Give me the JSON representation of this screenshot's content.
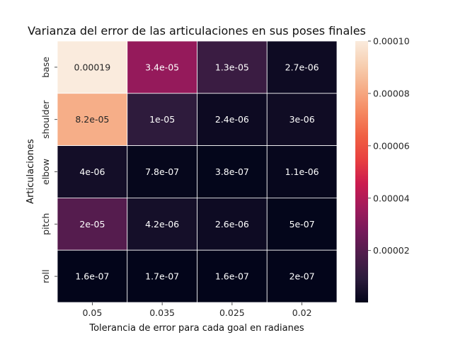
{
  "chart_data": {
    "type": "heatmap",
    "title": "Varianza del error de las articulaciones en sus poses finales",
    "xlabel": "Tolerancia de error para cada goal en radianes",
    "ylabel": "Articulaciones",
    "x_categories": [
      "0.05",
      "0.035",
      "0.025",
      "0.02"
    ],
    "y_categories": [
      "base",
      "shoulder",
      "elbow",
      "pitch",
      "roll"
    ],
    "values": [
      [
        0.00019,
        3.4e-05,
        1.3e-05,
        2.7e-06
      ],
      [
        8.2e-05,
        1e-05,
        2.4e-06,
        3e-06
      ],
      [
        4e-06,
        7.8e-07,
        3.8e-07,
        1.1e-06
      ],
      [
        2e-05,
        4.2e-06,
        2.6e-06,
        5e-07
      ],
      [
        1.6e-07,
        1.7e-07,
        1.6e-07,
        2e-07
      ]
    ],
    "annotations": [
      [
        "0.00019",
        "3.4e-05",
        "1.3e-05",
        "2.7e-06"
      ],
      [
        "8.2e-05",
        "1e-05",
        "2.4e-06",
        "3e-06"
      ],
      [
        "4e-06",
        "7.8e-07",
        "3.8e-07",
        "1.1e-06"
      ],
      [
        "2e-05",
        "4.2e-06",
        "2.6e-06",
        "5e-07"
      ],
      [
        "1.6e-07",
        "1.7e-07",
        "1.6e-07",
        "2e-07"
      ]
    ],
    "colorbar": {
      "colormap": "rocket",
      "vmin": 1.6e-07,
      "vmax": 0.0001,
      "tick_values": [
        2e-05,
        4e-05,
        6e-05,
        8e-05,
        0.0001
      ],
      "tick_labels": [
        "0.00002",
        "0.00004",
        "0.00006",
        "0.00008",
        "0.00010"
      ]
    },
    "grid_lines_color": "#ffffff",
    "colormap_stops": [
      "#03051a",
      "#2b1b3b",
      "#4e1d4b",
      "#76195a",
      "#a11a5b",
      "#cb1b4f",
      "#e83f3f",
      "#f06043",
      "#f58860",
      "#f6ad87",
      "#f7cfb1",
      "#faebdd"
    ]
  }
}
